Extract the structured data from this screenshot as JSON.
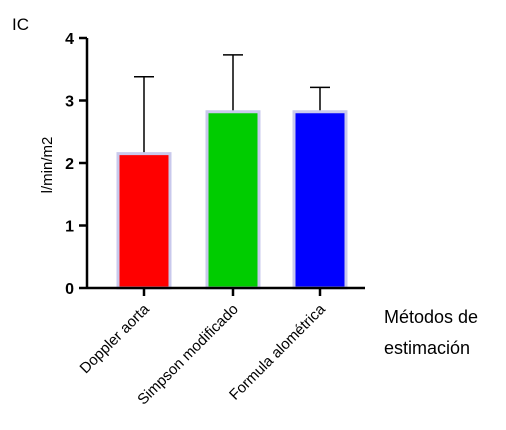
{
  "chart_data": {
    "type": "bar",
    "title": "IC",
    "ylabel": "l/min/m2",
    "xlabel": [
      "Métodos de",
      "estimación"
    ],
    "categories": [
      "Doppler aorta",
      "Simpson modificado",
      "Formula alométrica"
    ],
    "values": [
      2.15,
      2.82,
      2.82
    ],
    "error_upper": [
      3.38,
      3.73,
      3.21
    ],
    "ylim": [
      0,
      4
    ],
    "yticks": [
      "0",
      "1",
      "2",
      "3",
      "4"
    ],
    "colors": [
      "#ff0000",
      "#00cc00",
      "#0000ff"
    ],
    "grid": false,
    "legend": "none"
  }
}
